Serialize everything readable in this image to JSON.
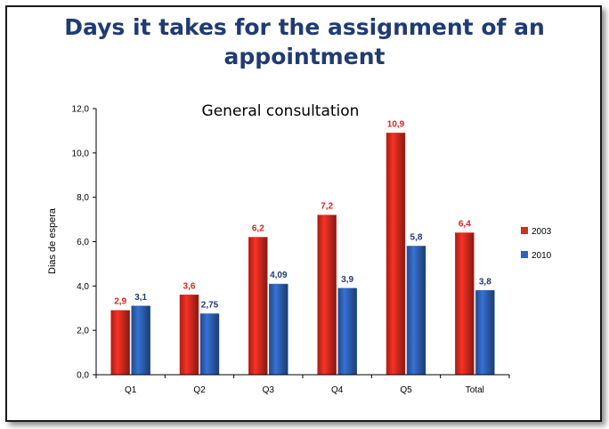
{
  "title_line1": "Days it takes for the assignment of an",
  "title_line2": "appointment",
  "chart_data": {
    "type": "bar",
    "title": "General consultation",
    "ylabel": "Dias de espera",
    "xlabel": "",
    "ylim": [
      0,
      12
    ],
    "yticks": [
      "0,0",
      "2,0",
      "4,0",
      "6,0",
      "8,0",
      "10,0",
      "12,0"
    ],
    "categories": [
      "Q1",
      "Q2",
      "Q3",
      "Q4",
      "Q5",
      "Total"
    ],
    "legend_position": "right",
    "series": [
      {
        "name": "2003",
        "color": "#d92b1f",
        "values": [
          2.9,
          3.6,
          6.2,
          7.2,
          10.9,
          6.4
        ],
        "labels": [
          "2,9",
          "3,6",
          "6,2",
          "7,2",
          "10,9",
          "6,4"
        ],
        "label_color": "#e02020"
      },
      {
        "name": "2010",
        "color": "#2e63b8",
        "values": [
          3.1,
          2.75,
          4.09,
          3.9,
          5.8,
          3.8
        ],
        "labels": [
          "3,1",
          "2,75",
          "4,09",
          "3,9",
          "5,8",
          "3,8"
        ],
        "label_color": "#1f3b73"
      }
    ]
  }
}
